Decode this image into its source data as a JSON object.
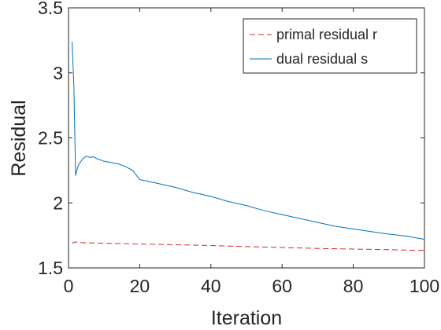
{
  "chart_data": {
    "type": "line",
    "title": "",
    "xlabel": "Iteration",
    "ylabel": "Residual",
    "xlim": [
      0,
      100
    ],
    "ylim": [
      1.5,
      3.5
    ],
    "xticks": [
      0,
      20,
      40,
      60,
      80,
      100
    ],
    "xtick_labels": [
      "0",
      "20",
      "40",
      "60",
      "80",
      "100"
    ],
    "yticks": [
      1.5,
      2,
      2.5,
      3,
      3.5
    ],
    "ytick_labels": [
      "1.5",
      "2",
      "2.5",
      "3",
      "3.5"
    ],
    "grid": false,
    "legend_position": "top-right",
    "series": [
      {
        "name": "primal residual r",
        "color": "#d62728",
        "style": "dashed",
        "x": [
          1,
          2,
          3,
          5,
          10,
          20,
          30,
          40,
          50,
          60,
          70,
          80,
          90,
          100
        ],
        "y": [
          1.69,
          1.7,
          1.695,
          1.693,
          1.69,
          1.684,
          1.678,
          1.672,
          1.664,
          1.657,
          1.65,
          1.645,
          1.64,
          1.635
        ]
      },
      {
        "name": "dual residual s",
        "color": "#0072bd",
        "style": "solid",
        "x": [
          1,
          1.5,
          2,
          2.5,
          3,
          4,
          5,
          6,
          7,
          8,
          10,
          12,
          14,
          16,
          18,
          20,
          25,
          30,
          35,
          40,
          45,
          50,
          55,
          60,
          65,
          70,
          75,
          80,
          85,
          90,
          95,
          100
        ],
        "y": [
          3.24,
          2.9,
          2.21,
          2.27,
          2.3,
          2.34,
          2.36,
          2.35,
          2.355,
          2.34,
          2.32,
          2.31,
          2.3,
          2.28,
          2.25,
          2.18,
          2.15,
          2.12,
          2.08,
          2.05,
          2.01,
          1.98,
          1.94,
          1.91,
          1.88,
          1.85,
          1.82,
          1.8,
          1.78,
          1.76,
          1.745,
          1.72
        ]
      }
    ]
  }
}
